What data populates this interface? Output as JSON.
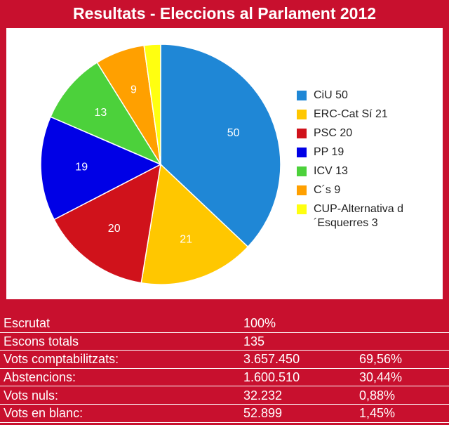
{
  "title": "Resultats - Eleccions al Parlament 2012",
  "chart_data": {
    "type": "pie",
    "title": "Resultats - Eleccions al Parlament 2012",
    "slices": [
      {
        "name": "CiU",
        "value": 50,
        "label": "50",
        "legend": "CiU 50",
        "color": "#1f87d6"
      },
      {
        "name": "ERC-Cat Sí",
        "value": 21,
        "label": "21",
        "legend": "ERC-Cat Sí 21",
        "color": "#ffc700"
      },
      {
        "name": "PSC",
        "value": 20,
        "label": "20",
        "legend": "PSC 20",
        "color": "#d0121b"
      },
      {
        "name": "PP",
        "value": 19,
        "label": "19",
        "legend": "PP 19",
        "color": "#0000e6"
      },
      {
        "name": "ICV",
        "value": 13,
        "label": "13",
        "legend": "ICV 13",
        "color": "#4cd13b"
      },
      {
        "name": "C´s",
        "value": 9,
        "label": "9",
        "legend": "C´s 9",
        "color": "#ffa000"
      },
      {
        "name": "CUP-Alternativa d´Esquerres",
        "value": 3,
        "label": "",
        "legend": "CUP-Alternativa d´Esquerres 3",
        "color": "#ffff10"
      }
    ],
    "legend_position": "right"
  },
  "stats": [
    {
      "label": "Escrutat",
      "value": "100%",
      "percent": ""
    },
    {
      "label": "Escons totals",
      "value": "135",
      "percent": ""
    },
    {
      "label": "Vots comptabilitzats:",
      "value": "3.657.450",
      "percent": "69,56%"
    },
    {
      "label": "Abstencions:",
      "value": "1.600.510",
      "percent": "30,44%"
    },
    {
      "label": "Vots nuls:",
      "value": "32.232",
      "percent": "0,88%"
    },
    {
      "label": "Vots en blanc:",
      "value": "52.899",
      "percent": "1,45%"
    }
  ]
}
